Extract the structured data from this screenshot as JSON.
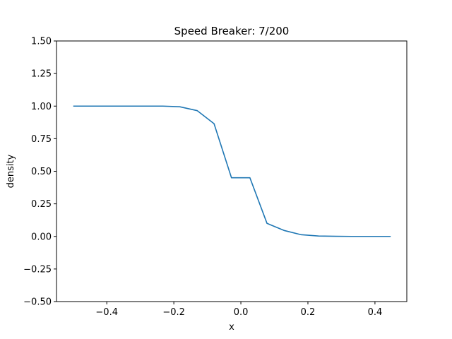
{
  "chart_data": {
    "type": "line",
    "title": "Speed Breaker: 7/200",
    "xlabel": "x",
    "ylabel": "density",
    "xlim": [
      -0.55,
      0.495
    ],
    "ylim": [
      -0.5,
      1.5
    ],
    "xticks": [
      -0.4,
      -0.2,
      0.0,
      0.2,
      0.4
    ],
    "xtick_labels": [
      "−0.4",
      "−0.2",
      "0.0",
      "0.2",
      "0.4"
    ],
    "yticks": [
      -0.5,
      -0.25,
      0.0,
      0.25,
      0.5,
      0.75,
      1.0,
      1.25,
      1.5
    ],
    "ytick_labels": [
      "−0.50",
      "−0.25",
      "0.00",
      "0.25",
      "0.50",
      "0.75",
      "1.00",
      "1.25",
      "1.50"
    ],
    "grid": false,
    "series": [
      {
        "color": "#1f77b4",
        "x": [
          -0.5,
          -0.45,
          -0.4,
          -0.35,
          -0.3,
          -0.25,
          -0.233,
          -0.182,
          -0.13,
          -0.08,
          -0.028,
          0.027,
          0.078,
          0.13,
          0.18,
          0.232,
          0.283,
          0.33,
          0.38,
          0.43,
          0.447
        ],
        "y": [
          1.0,
          1.0,
          1.0,
          1.0,
          1.0,
          1.0,
          1.0,
          0.995,
          0.965,
          0.865,
          0.45,
          0.45,
          0.1,
          0.045,
          0.013,
          0.003,
          0.001,
          0.0,
          0.0,
          0.0,
          0.0
        ]
      }
    ]
  }
}
